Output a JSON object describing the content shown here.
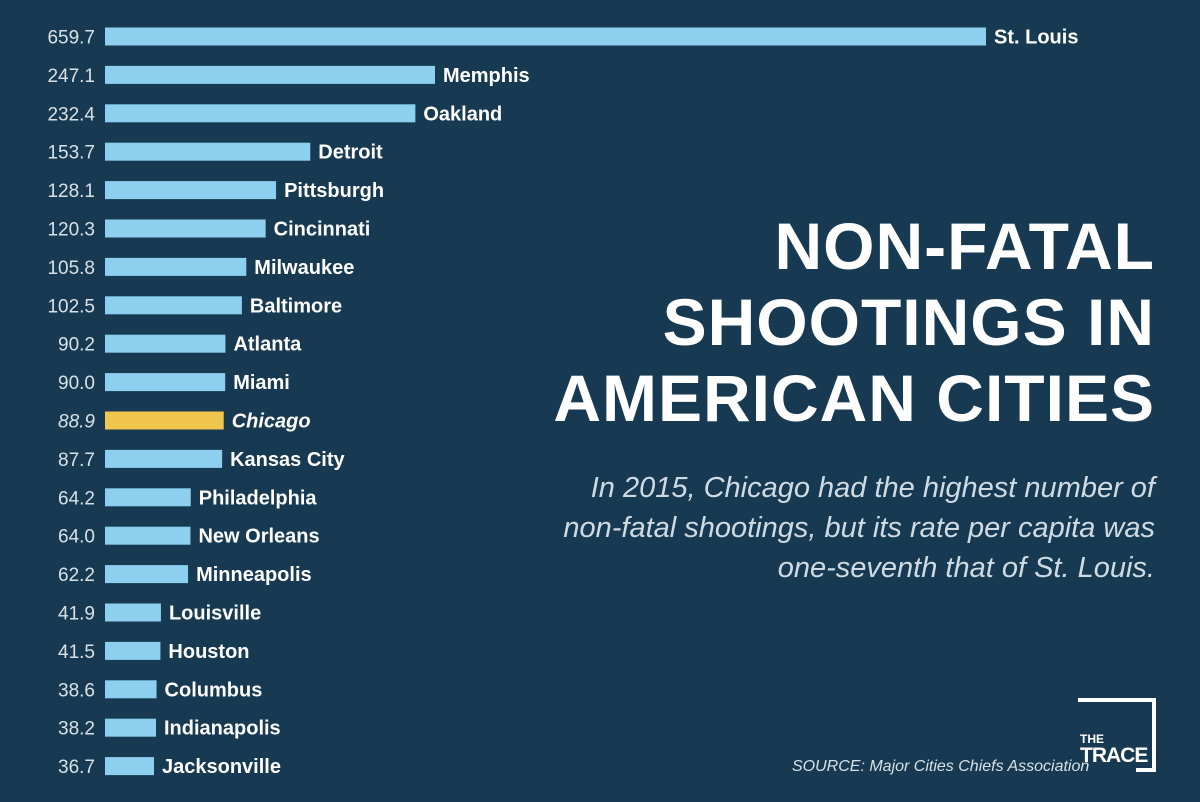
{
  "chart_data": {
    "type": "bar",
    "orientation": "horizontal",
    "categories": [
      "St. Louis",
      "Memphis",
      "Oakland",
      "Detroit",
      "Pittsburgh",
      "Cincinnati",
      "Milwaukee",
      "Baltimore",
      "Atlanta",
      "Miami",
      "Chicago",
      "Kansas City",
      "Philadelphia",
      "New Orleans",
      "Minneapolis",
      "Louisville",
      "Houston",
      "Columbus",
      "Indianapolis",
      "Jacksonville"
    ],
    "value_labels": [
      "659.7",
      "247.1",
      "232.4",
      "153.7",
      "128.1",
      "120.3",
      "105.8",
      "102.5",
      "90.2",
      "90.0",
      "88.9",
      "87.7",
      "64.2",
      "64.0",
      "62.2",
      "41.9",
      "41.5",
      "38.6",
      "38.2",
      "36.7"
    ],
    "values": [
      659.7,
      247.1,
      232.4,
      153.7,
      128.1,
      120.3,
      105.8,
      102.5,
      90.2,
      90.0,
      88.9,
      87.7,
      64.2,
      64.0,
      62.2,
      41.9,
      41.5,
      38.6,
      38.2,
      36.7
    ],
    "highlight": "Chicago",
    "bar_color": "#8dcfee",
    "highlight_color": "#f1c64c",
    "background_color": "#173a52",
    "grid": false,
    "legend": false
  },
  "title_lines": [
    "NON-FATAL",
    "SHOOTINGS IN",
    "AMERICAN CITIES"
  ],
  "subtitle_lines": [
    "In 2015, Chicago had the highest number of",
    "non-fatal shootings, but its rate per capita was",
    "one-seventh that of St. Louis."
  ],
  "source": "SOURCE: Major Cities Chiefs Association",
  "logo": {
    "top": "THE",
    "bottom": "TRACE"
  }
}
